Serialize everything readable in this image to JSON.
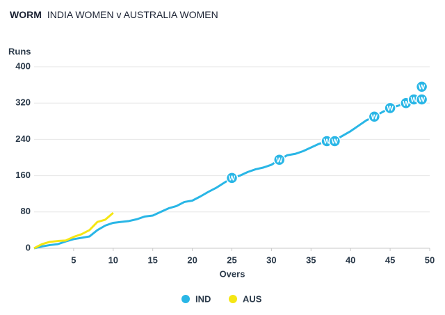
{
  "chart_data": {
    "type": "line",
    "title": "WORM",
    "subtitle": "INDIA WOMEN v AUSTRALIA WOMEN",
    "y_label": "Runs",
    "x_label": "Overs",
    "xlim": [
      0,
      50
    ],
    "xticks": [
      5,
      10,
      15,
      20,
      25,
      30,
      35,
      40,
      45,
      50
    ],
    "ylim": [
      0,
      400
    ],
    "yticks": [
      0,
      80,
      160,
      240,
      320,
      400
    ],
    "grid": true,
    "legend": "bottom",
    "series": [
      {
        "name": "IND",
        "color": "#29b6e6",
        "x": [
          0,
          1,
          2,
          3,
          4,
          5,
          6,
          7,
          8,
          9,
          10,
          11,
          12,
          13,
          14,
          15,
          16,
          17,
          18,
          19,
          20,
          21,
          22,
          23,
          24,
          25,
          26,
          27,
          28,
          29,
          30,
          31,
          32,
          33,
          34,
          35,
          36,
          37,
          38,
          39,
          40,
          41,
          42,
          43,
          44,
          45,
          46,
          47,
          48,
          49
        ],
        "values": [
          0,
          4,
          7,
          9,
          15,
          20,
          23,
          26,
          40,
          50,
          56,
          58,
          60,
          64,
          70,
          72,
          80,
          88,
          93,
          102,
          105,
          114,
          124,
          133,
          144,
          155,
          160,
          168,
          174,
          178,
          184,
          195,
          205,
          208,
          214,
          222,
          230,
          236,
          238,
          248,
          258,
          270,
          282,
          290,
          300,
          309,
          314,
          320,
          326,
          328
        ],
        "wicket_x": [
          25,
          31,
          37,
          38,
          43,
          45,
          47,
          48,
          49,
          49
        ],
        "wicket_y": [
          155,
          195,
          236,
          236,
          290,
          309,
          320,
          328,
          328,
          356
        ]
      },
      {
        "name": "AUS",
        "color": "#f5e614",
        "x": [
          0,
          1,
          2,
          3,
          4,
          5,
          6,
          7,
          8,
          9,
          10
        ],
        "values": [
          0,
          9,
          14,
          16,
          17,
          25,
          31,
          40,
          58,
          63,
          78
        ]
      }
    ],
    "wicket_label": "W"
  }
}
